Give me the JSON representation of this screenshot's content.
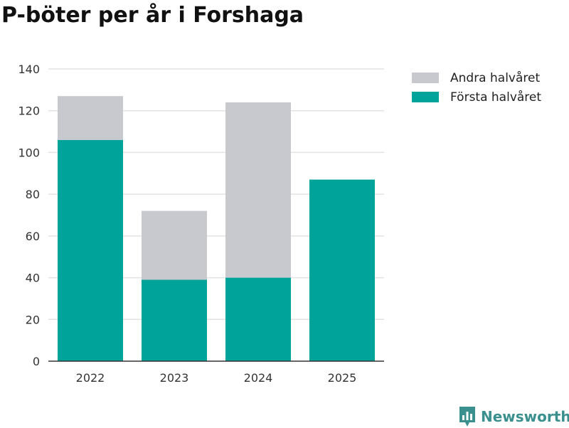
{
  "title": "P-böter per år i Forshaga",
  "brand": {
    "name": "Newsworthy",
    "icon": "newsworthy-logo-icon"
  },
  "colors": {
    "forsta": "#00a39a",
    "andra": "#c8c8cf",
    "grid": "#e2e2e2",
    "axis": "#333333",
    "text": "#333333"
  },
  "chart_data": {
    "type": "bar",
    "stacked": true,
    "title": "P-böter per år i Forshaga",
    "categories": [
      "2022",
      "2023",
      "2024",
      "2025"
    ],
    "series": [
      {
        "name": "Första halvåret",
        "values": [
          106,
          39,
          40,
          87
        ]
      },
      {
        "name": "Andra halvåret",
        "values": [
          21,
          33,
          84,
          0
        ]
      }
    ],
    "ylim": [
      0,
      140
    ],
    "yticks": [
      0,
      20,
      40,
      60,
      80,
      100,
      120,
      140
    ],
    "grid": true,
    "legend": {
      "position": "top-right",
      "entries": [
        "Andra halvåret",
        "Första halvåret"
      ]
    },
    "xlabel": "",
    "ylabel": ""
  }
}
